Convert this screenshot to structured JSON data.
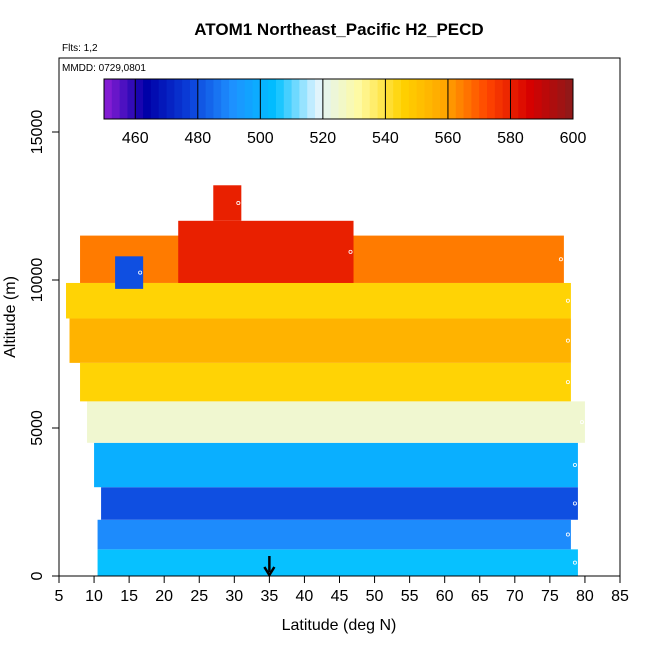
{
  "chart_data": {
    "type": "heatmap",
    "title": "ATOM1 Northeast_Pacific H2_PECD",
    "flights_label": "Flts: 1,2",
    "date_label": "MMDD: 0729,0801",
    "xlabel": "Latitude (deg N)",
    "ylabel": "Altitude (m)",
    "xlim": [
      5,
      85
    ],
    "ylim": [
      0,
      17500
    ],
    "x_ticks": [
      "5",
      "10",
      "15",
      "20",
      "25",
      "30",
      "35",
      "40",
      "45",
      "50",
      "55",
      "60",
      "65",
      "70",
      "75",
      "80",
      "85"
    ],
    "y_ticks": [
      "0",
      "5000",
      "10000",
      "15000"
    ],
    "colorbar": {
      "min": 450,
      "max": 600,
      "ticks": [
        "460",
        "480",
        "500",
        "520",
        "540",
        "560",
        "580",
        "600"
      ],
      "colors": [
        "#8f1fd6",
        "#0000a8",
        "#0b3fd9",
        "#1e90ff",
        "#00bfff",
        "#e0f4ff",
        "#fffaa0",
        "#ffd200",
        "#ffa500",
        "#ff4500",
        "#d60000",
        "#8b1a1a"
      ]
    },
    "marker_latitude": 35,
    "grid": false,
    "legend": "colorbar-top",
    "regions": [
      {
        "lat": [
          10.5,
          79
        ],
        "alt": [
          0,
          900
        ],
        "value": 505
      },
      {
        "lat": [
          10.5,
          78
        ],
        "alt": [
          900,
          1900
        ],
        "value": 490
      },
      {
        "lat": [
          11,
          79
        ],
        "alt": [
          1900,
          3000
        ],
        "value": 480
      },
      {
        "lat": [
          10,
          79
        ],
        "alt": [
          3000,
          4500
        ],
        "value": 500
      },
      {
        "lat": [
          9,
          80
        ],
        "alt": [
          4500,
          5900
        ],
        "value": 525
      },
      {
        "lat": [
          8,
          78
        ],
        "alt": [
          5900,
          7200
        ],
        "value": 545
      },
      {
        "lat": [
          6.5,
          78
        ],
        "alt": [
          7200,
          8700
        ],
        "value": 555
      },
      {
        "lat": [
          6,
          78
        ],
        "alt": [
          8700,
          9900
        ],
        "value": 545
      },
      {
        "lat": [
          8,
          77
        ],
        "alt": [
          9900,
          11500
        ],
        "value": 565
      },
      {
        "lat": [
          22,
          47
        ],
        "alt": [
          9900,
          12000
        ],
        "value": 580
      },
      {
        "lat": [
          27,
          31
        ],
        "alt": [
          12000,
          13200
        ],
        "value": 580
      },
      {
        "lat": [
          13,
          17
        ],
        "alt": [
          9700,
          10800
        ],
        "value": 480
      }
    ]
  }
}
